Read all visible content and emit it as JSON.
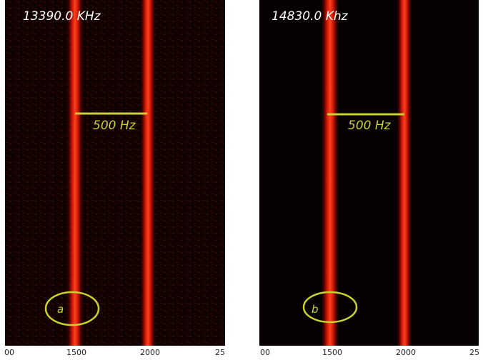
{
  "panels": [
    {
      "title": "13390.0 KHz",
      "scale_label": "500 Hz",
      "marker_label": "a",
      "axis_ticks": [
        "00",
        "1500",
        "2000",
        "25"
      ]
    },
    {
      "title": "14830.0 Khz",
      "scale_label": "500 Hz",
      "marker_label": "b",
      "axis_ticks": [
        "00",
        "1500",
        "2000",
        "25"
      ]
    }
  ]
}
